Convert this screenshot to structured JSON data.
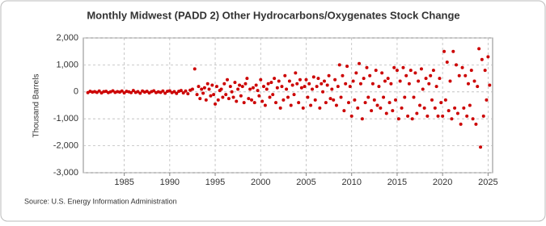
{
  "chart_data": {
    "type": "scatter",
    "title": "Monthly Midwest (PADD 2) Other Hydrocarbons/Oxygenates Stock Change",
    "ylabel": "Thousand Barrels",
    "source": "Source: U.S. Energy Information Administration",
    "color": "#cc0000",
    "grid": true,
    "xlim": [
      1980.5,
      2025.5
    ],
    "xticks": [
      1985,
      1990,
      1995,
      2000,
      2005,
      2010,
      2015,
      2020,
      2025
    ],
    "ylim": [
      -3000,
      2000
    ],
    "yticks": [
      {
        "value": -3000,
        "label": "-3,000"
      },
      {
        "value": -2000,
        "label": "-2,000"
      },
      {
        "value": -1000,
        "label": "-1,000"
      },
      0,
      {
        "value": 1000,
        "label": "1,000"
      },
      {
        "value": 2000,
        "label": "2,000"
      }
    ],
    "x": [
      1981.0,
      1981.25,
      1981.5,
      1981.75,
      1982.0,
      1982.25,
      1982.5,
      1982.75,
      1983.0,
      1983.25,
      1983.5,
      1983.75,
      1984.0,
      1984.25,
      1984.5,
      1984.75,
      1985.0,
      1985.25,
      1985.5,
      1985.75,
      1986.0,
      1986.25,
      1986.5,
      1986.75,
      1987.0,
      1987.25,
      1987.5,
      1987.75,
      1988.0,
      1988.25,
      1988.5,
      1988.75,
      1989.0,
      1989.25,
      1989.5,
      1989.75,
      1990.0,
      1990.25,
      1990.5,
      1990.75,
      1991.0,
      1991.25,
      1991.5,
      1991.75,
      1992.0,
      1992.25,
      1992.5,
      1992.75,
      1993.0,
      1993.17,
      1993.33,
      1993.5,
      1993.67,
      1993.83,
      1994.0,
      1994.17,
      1994.33,
      1994.5,
      1994.67,
      1994.83,
      1995.0,
      1995.17,
      1995.33,
      1995.5,
      1995.67,
      1995.83,
      1996.0,
      1996.17,
      1996.33,
      1996.5,
      1996.67,
      1996.83,
      1997.0,
      1997.17,
      1997.33,
      1997.5,
      1997.67,
      1997.83,
      1998.0,
      1998.17,
      1998.33,
      1998.5,
      1998.67,
      1998.83,
      1999.0,
      1999.17,
      1999.33,
      1999.5,
      1999.67,
      1999.83,
      2000.0,
      2000.17,
      2000.33,
      2000.5,
      2000.67,
      2000.83,
      2001.0,
      2001.17,
      2001.33,
      2001.5,
      2001.67,
      2001.83,
      2002.0,
      2002.17,
      2002.33,
      2002.5,
      2002.67,
      2002.83,
      2003.0,
      2003.17,
      2003.33,
      2003.5,
      2003.67,
      2003.83,
      2004.0,
      2004.17,
      2004.33,
      2004.5,
      2004.67,
      2004.83,
      2005.0,
      2005.17,
      2005.33,
      2005.5,
      2005.67,
      2005.83,
      2006.0,
      2006.17,
      2006.33,
      2006.5,
      2006.67,
      2006.83,
      2007.0,
      2007.17,
      2007.33,
      2007.5,
      2007.67,
      2007.83,
      2008.0,
      2008.17,
      2008.33,
      2008.5,
      2008.67,
      2008.83,
      2009.0,
      2009.17,
      2009.33,
      2009.5,
      2009.67,
      2009.83,
      2010.0,
      2010.17,
      2010.33,
      2010.5,
      2010.67,
      2010.83,
      2011.0,
      2011.17,
      2011.33,
      2011.5,
      2011.67,
      2011.83,
      2012.0,
      2012.17,
      2012.33,
      2012.5,
      2012.67,
      2012.83,
      2013.0,
      2013.17,
      2013.33,
      2013.5,
      2013.67,
      2013.83,
      2014.0,
      2014.17,
      2014.33,
      2014.5,
      2014.67,
      2014.83,
      2015.0,
      2015.17,
      2015.33,
      2015.5,
      2015.67,
      2015.83,
      2016.0,
      2016.17,
      2016.33,
      2016.5,
      2016.67,
      2016.83,
      2017.0,
      2017.17,
      2017.33,
      2017.5,
      2017.67,
      2017.83,
      2018.0,
      2018.17,
      2018.33,
      2018.5,
      2018.67,
      2018.83,
      2019.0,
      2019.17,
      2019.33,
      2019.5,
      2019.67,
      2019.83,
      2020.0,
      2020.17,
      2020.33,
      2020.5,
      2020.67,
      2020.83,
      2021.0,
      2021.17,
      2021.33,
      2021.5,
      2021.67,
      2021.83,
      2022.0,
      2022.17,
      2022.33,
      2022.5,
      2022.67,
      2022.83,
      2023.0,
      2023.17,
      2023.33,
      2023.5,
      2023.67,
      2023.83,
      2024.0,
      2024.17,
      2024.33,
      2024.5,
      2024.67,
      2024.83,
      2025.0,
      2025.17
    ],
    "values": [
      -30,
      20,
      -10,
      10,
      -20,
      30,
      -40,
      10,
      20,
      -30,
      0,
      40,
      -20,
      10,
      -10,
      30,
      -40,
      20,
      0,
      -30,
      50,
      -20,
      10,
      -50,
      30,
      -10,
      20,
      -40,
      10,
      40,
      -30,
      0,
      -20,
      30,
      -50,
      20,
      40,
      -30,
      10,
      -60,
      20,
      50,
      -40,
      30,
      -70,
      60,
      100,
      850,
      -100,
      200,
      -250,
      100,
      -50,
      150,
      -300,
      300,
      100,
      -150,
      250,
      -100,
      -450,
      200,
      -300,
      50,
      100,
      -200,
      300,
      -100,
      450,
      -250,
      200,
      0,
      -200,
      350,
      -350,
      100,
      250,
      -150,
      200,
      -400,
      300,
      500,
      -250,
      100,
      -300,
      150,
      -400,
      250,
      50,
      -150,
      450,
      -350,
      200,
      -500,
      100,
      300,
      -200,
      350,
      -100,
      500,
      -400,
      150,
      400,
      -600,
      200,
      -300,
      600,
      100,
      -200,
      400,
      -500,
      250,
      -100,
      700,
      300,
      -400,
      450,
      150,
      -600,
      200,
      450,
      -200,
      300,
      -500,
      100,
      550,
      -300,
      200,
      500,
      -600,
      300,
      0,
      400,
      -400,
      250,
      600,
      -250,
      100,
      -300,
      450,
      -500,
      200,
      1000,
      -200,
      600,
      -700,
      300,
      950,
      -400,
      200,
      -900,
      400,
      -300,
      700,
      -600,
      1050,
      300,
      -1000,
      500,
      -400,
      900,
      -200,
      600,
      -700,
      300,
      -300,
      800,
      -500,
      200,
      -600,
      700,
      -200,
      400,
      -800,
      500,
      -400,
      300,
      -700,
      900,
      -300,
      800,
      -1000,
      400,
      -600,
      900,
      -200,
      600,
      -900,
      300,
      800,
      -1000,
      -200,
      700,
      -800,
      400,
      -500,
      850,
      100,
      -600,
      500,
      -900,
      300,
      600,
      -300,
      800,
      -600,
      200,
      -900,
      500,
      -400,
      -900,
      1500,
      -300,
      1100,
      -700,
      400,
      -1000,
      1500,
      -600,
      1000,
      -800,
      600,
      -1200,
      900,
      -600,
      600,
      -900,
      300,
      -500,
      800,
      -1000,
      400,
      -1200,
      200,
      1600,
      -2050,
      1200,
      -900,
      800,
      -300,
      1300,
      250
    ]
  }
}
